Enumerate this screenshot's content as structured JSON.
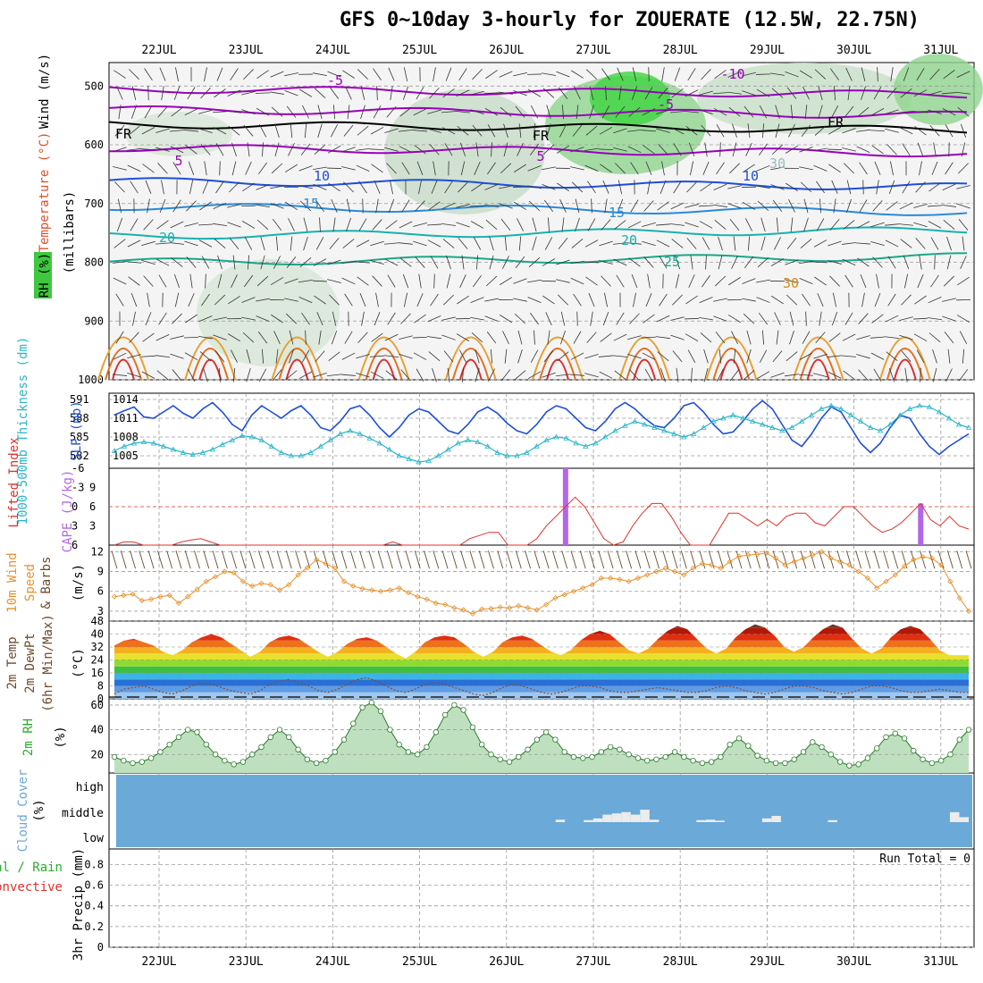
{
  "title": "GFS 0~10day 3-hourly for ZOUERATE (12.5W, 22.75N)",
  "dates": [
    "22JUL",
    "23JUL",
    "24JUL",
    "25JUL",
    "26JUL",
    "27JUL",
    "28JUL",
    "29JUL",
    "30JUL",
    "31JUL"
  ],
  "colors": {
    "purple": "#9900bb",
    "blue": "#1e4fd8",
    "cyan": "#2bb5c8",
    "red": "#e0302a",
    "orange": "#e8902a",
    "green": "#2cab2c",
    "cloud": "#6aa9d8",
    "violet": "#b566e8",
    "brown": "#6b4a2a",
    "rh_fill": "#3fc83f"
  },
  "panels": {
    "upper": {
      "labels": {
        "wind": "Wind (m/s)",
        "temp": "Temperature (°C)",
        "rh": "RH (%)",
        "mb": "(millibars)"
      },
      "levels": [
        500,
        600,
        700,
        800,
        900,
        1000
      ],
      "contour_labels": [
        "-5",
        "-10",
        "-5",
        "5",
        "5",
        "FR",
        "FR",
        "FR",
        "10",
        "10",
        "15",
        "15",
        "20",
        "20",
        "25",
        "30",
        "30"
      ]
    },
    "thick": {
      "labels": {
        "thick": "1000-500mb Thickness (dm)",
        "slp": "SLP (mb)"
      },
      "left_ticks": [
        "591",
        "588",
        "585",
        "582"
      ],
      "right_ticks": [
        "1014",
        "1011",
        "1008",
        "1005"
      ]
    },
    "cape": {
      "labels": {
        "li": "Lifted Index",
        "cape": "CAPE (J/kg)"
      },
      "left_ticks": [
        "-6",
        "-3",
        "0",
        "3",
        "6"
      ],
      "right_ticks": [
        "9",
        "6",
        "3"
      ]
    },
    "wind10": {
      "labels": {
        "wind": "10m Wind",
        "speed": "Speed",
        "barbs": "& Barbs",
        "unit": "(m/s)"
      },
      "ticks": [
        "12",
        "9",
        "6",
        "3"
      ]
    },
    "temp2m": {
      "labels": {
        "temp": "2m Temp",
        "dewpt": "2m DewPt",
        "minmax": "(6hr Min/Max)",
        "unit": "(°C)"
      },
      "ticks": [
        "48",
        "40",
        "32",
        "24",
        "16",
        "8",
        "0"
      ]
    },
    "rh2m": {
      "labels": {
        "rh": "2m RH",
        "unit": "(%)"
      },
      "ticks": [
        "60",
        "40",
        "20"
      ]
    },
    "cloud": {
      "labels": {
        "cloud": "Cloud Cover",
        "unit": "(%)"
      },
      "levels": [
        "high",
        "middle",
        "low"
      ]
    },
    "precip": {
      "labels": {
        "total": "Total / Rain",
        "conv": "Convective",
        "precip": "3hr Precip (mm)"
      },
      "ticks": [
        "0.8",
        "0.6",
        "0.4",
        "0.2",
        "0"
      ],
      "run_total": "Run Total = 0"
    }
  },
  "chart_data": [
    {
      "type": "line",
      "title": "1000-500mb Thickness (dm) / SLP (mb)",
      "series": [
        {
          "name": "SLP (mb)",
          "values": [
            1011.5,
            1012.2,
            1012.8,
            1011.2,
            1011.0,
            1012.0,
            1013.0,
            1011.8,
            1011.0,
            1012.5,
            1013.5,
            1012.0,
            1010.0,
            1009.0,
            1011.5,
            1013.0,
            1012.0,
            1011.0,
            1012.2,
            1013.0,
            1011.5,
            1009.5,
            1009.0,
            1010.5,
            1012.5,
            1013.0,
            1011.5,
            1009.5,
            1008.0,
            1009.5,
            1011.5,
            1012.5,
            1012.0,
            1010.5,
            1009.0,
            1008.5,
            1010.0,
            1012.0,
            1012.8,
            1011.8,
            1010.2,
            1009.0,
            1008.5,
            1010.0,
            1012.0,
            1013.0,
            1012.5,
            1011.0,
            1009.5,
            1009.0,
            1010.5,
            1012.5,
            1013.5,
            1012.5,
            1011.0,
            1009.8,
            1009.5,
            1011.0,
            1013.0,
            1013.5,
            1012.0,
            1010.0,
            1008.5,
            1008.8,
            1010.5,
            1012.5,
            1013.8,
            1012.5,
            1010.0,
            1007.5,
            1006.5,
            1008.5,
            1011.0,
            1012.8,
            1012.0,
            1009.5,
            1007.0,
            1005.5,
            1007.0,
            1009.5,
            1011.5,
            1011.0,
            1008.5,
            1006.5,
            1005.2,
            1006.5,
            1007.5,
            1008.5
          ]
        },
        {
          "name": "1000-500mb Thickness (dm)",
          "values": [
            582.8,
            583.5,
            584.0,
            584.2,
            584.0,
            583.5,
            583.0,
            582.5,
            582.2,
            582.5,
            583.0,
            583.8,
            584.5,
            585.2,
            585.0,
            584.5,
            583.5,
            582.5,
            582.0,
            582.0,
            582.5,
            583.5,
            584.5,
            585.5,
            586.0,
            585.5,
            584.8,
            584.0,
            583.0,
            582.0,
            581.5,
            581.0,
            581.2,
            582.0,
            583.0,
            584.0,
            584.5,
            584.2,
            583.5,
            582.5,
            582.0,
            582.0,
            582.5,
            583.5,
            584.5,
            585.0,
            584.8,
            584.0,
            583.5,
            584.0,
            585.0,
            586.0,
            586.8,
            587.5,
            587.0,
            586.5,
            586.0,
            585.5,
            585.0,
            585.5,
            586.5,
            587.5,
            588.0,
            588.5,
            588.0,
            587.5,
            587.0,
            586.5,
            586.0,
            586.5,
            587.5,
            588.5,
            589.5,
            590.0,
            589.5,
            588.5,
            587.5,
            586.5,
            586.0,
            587.0,
            588.5,
            589.5,
            590.0,
            589.8,
            589.0,
            588.0,
            587.0,
            586.5
          ]
        }
      ]
    },
    {
      "type": "line",
      "title": "Lifted Index / CAPE (J/kg)",
      "series": [
        {
          "name": "Lifted Index",
          "values": [
            6.0,
            5.5,
            5.5,
            6.0,
            6.0,
            6.0,
            6.0,
            5.5,
            5.2,
            5.0,
            5.5,
            6.0,
            6.0,
            6.0,
            6.0,
            6.0,
            6.0,
            6.0,
            6.0,
            6.0,
            6.0,
            6.0,
            6.0,
            6.0,
            6.0,
            6.0,
            6.0,
            6.0,
            6.0,
            5.5,
            6.0,
            6.0,
            6.0,
            6.0,
            6.0,
            6.0,
            6.0,
            5.0,
            4.5,
            4.0,
            4.0,
            6.0,
            6.0,
            6.0,
            5.0,
            3.0,
            1.5,
            0.0,
            -1.5,
            0.0,
            2.5,
            5.0,
            6.0,
            5.5,
            3.0,
            1.0,
            -0.5,
            -0.5,
            1.5,
            4.0,
            6.0,
            6.0,
            6.0,
            3.5,
            1.0,
            1.0,
            2.0,
            3.0,
            2.0,
            3.0,
            1.5,
            1.0,
            1.0,
            2.5,
            3.0,
            1.5,
            0.0,
            0.0,
            1.5,
            3.0,
            4.0,
            3.5,
            2.5,
            1.0,
            -0.5,
            2.0,
            3.0,
            1.5,
            3.0,
            3.5
          ]
        },
        {
          "name": "CAPE (J/kg)",
          "values": [
            0,
            0,
            0,
            0,
            0,
            0,
            0,
            0,
            0,
            0,
            0,
            0,
            0,
            0,
            0,
            0,
            0,
            0,
            0,
            0,
            0,
            0,
            0,
            0,
            0,
            0,
            0,
            0,
            0,
            0,
            0,
            0,
            0,
            0,
            0,
            0,
            0,
            0,
            0,
            0,
            0,
            0,
            0,
            0,
            0,
            0,
            0,
            12,
            0,
            0,
            0,
            0,
            0,
            0,
            0,
            0,
            0,
            0,
            0,
            0,
            0,
            0,
            0,
            0,
            0,
            0,
            0,
            0,
            0,
            0,
            0,
            0,
            0,
            0,
            0,
            0,
            0,
            0,
            0,
            0,
            0,
            0,
            0,
            0,
            6.5,
            0,
            0,
            0,
            0,
            0
          ]
        }
      ]
    },
    {
      "type": "line",
      "title": "10m Wind Speed & Barbs (m/s)",
      "series": [
        {
          "name": "Speed",
          "values": [
            5.2,
            5.4,
            5.6,
            4.6,
            4.8,
            5.2,
            5.4,
            4.2,
            5.2,
            6.3,
            7.5,
            8.2,
            9.0,
            8.8,
            7.5,
            6.8,
            7.2,
            7.0,
            6.2,
            7.0,
            8.5,
            9.6,
            10.8,
            10.2,
            9.5,
            7.5,
            6.8,
            6.4,
            6.2,
            6.0,
            6.2,
            6.5,
            5.8,
            5.2,
            4.8,
            4.2,
            4.0,
            3.5,
            3.2,
            2.6,
            3.3,
            3.4,
            3.6,
            3.5,
            3.8,
            3.5,
            3.2,
            4.0,
            5.0,
            5.5,
            6.0,
            6.5,
            7.0,
            8.0,
            8.0,
            7.8,
            7.5,
            8.0,
            8.5,
            9.0,
            9.5,
            9.0,
            8.5,
            9.5,
            10.2,
            10.0,
            9.5,
            10.5,
            11.3,
            11.5,
            11.6,
            11.8,
            11.0,
            10.0,
            10.5,
            11.0,
            11.5,
            12.0,
            11.0,
            10.5,
            10.0,
            9.0,
            8.0,
            6.5,
            7.5,
            8.5,
            9.8,
            10.8,
            11.2,
            11.0,
            10.0,
            7.5,
            5.0,
            3.0
          ]
        }
      ]
    },
    {
      "type": "line",
      "title": "2m Temp / 2m DewPt (6hr Min/Max) (°C)",
      "series": [
        {
          "name": "2m Temp",
          "values": [
            33,
            36,
            37,
            35,
            33,
            29,
            27,
            30,
            35,
            38,
            40,
            38,
            34,
            30,
            26,
            29,
            35,
            38,
            39,
            37,
            33,
            29,
            26,
            29,
            34,
            37,
            38,
            36,
            32,
            28,
            25,
            29,
            35,
            38,
            39,
            38,
            34,
            29,
            26,
            29,
            35,
            38,
            39,
            37,
            33,
            29,
            27,
            30,
            36,
            40,
            42,
            40,
            35,
            30,
            28,
            31,
            37,
            42,
            45,
            43,
            37,
            31,
            28,
            31,
            38,
            43,
            46,
            44,
            39,
            32,
            29,
            32,
            38,
            43,
            46,
            44,
            37,
            31,
            28,
            31,
            38,
            43,
            45,
            43,
            37,
            30,
            27,
            27,
            27
          ]
        },
        {
          "name": "2m DewPt",
          "values": [
            3,
            6,
            7,
            8,
            6,
            4,
            3,
            5,
            8,
            10,
            9,
            7,
            5,
            4,
            3,
            5,
            9,
            11,
            12,
            10,
            8,
            5,
            4,
            6,
            9,
            12,
            13,
            11,
            8,
            5,
            4,
            6,
            9,
            10,
            9,
            7,
            5,
            3,
            2,
            4,
            7,
            9,
            8,
            6,
            4,
            3,
            4,
            6,
            8,
            8,
            7,
            5,
            4,
            4,
            5,
            6,
            7,
            6,
            5,
            4,
            4,
            5,
            7,
            8,
            7,
            5,
            4,
            3,
            4,
            6,
            8,
            8,
            7,
            5,
            4,
            3,
            4,
            6,
            8,
            8,
            7,
            5,
            4,
            4,
            5,
            6,
            5,
            4,
            4
          ]
        }
      ]
    },
    {
      "type": "area",
      "title": "2m RH (%)",
      "series": [
        {
          "name": "2m RH",
          "values": [
            18,
            15,
            13,
            14,
            17,
            22,
            28,
            34,
            40,
            38,
            28,
            20,
            15,
            12,
            14,
            20,
            26,
            34,
            40,
            34,
            24,
            16,
            13,
            15,
            22,
            32,
            45,
            58,
            62,
            55,
            40,
            28,
            22,
            20,
            26,
            38,
            52,
            60,
            56,
            42,
            28,
            20,
            16,
            14,
            18,
            24,
            32,
            38,
            32,
            22,
            18,
            17,
            18,
            22,
            26,
            24,
            20,
            17,
            15,
            16,
            18,
            22,
            18,
            15,
            13,
            14,
            18,
            28,
            33,
            27,
            19,
            15,
            13,
            13,
            16,
            22,
            30,
            26,
            20,
            14,
            11,
            12,
            17,
            25,
            34,
            37,
            33,
            23,
            16,
            13,
            15,
            20,
            32,
            40
          ]
        }
      ]
    },
    {
      "type": "bar",
      "title": "Cloud Cover (%)",
      "series": [
        {
          "name": "high",
          "values": [
            0,
            0,
            0,
            0,
            0,
            0,
            0,
            0,
            0,
            0,
            0,
            0,
            0,
            0,
            0,
            0,
            0,
            0,
            0,
            0,
            0,
            0,
            0,
            0,
            0,
            0,
            0,
            0,
            0,
            0,
            0,
            0,
            0,
            0,
            0,
            0,
            0,
            0,
            0,
            0,
            0,
            0,
            0,
            0,
            0,
            0,
            0,
            0,
            0,
            0,
            0,
            0,
            0,
            0,
            0,
            0,
            0,
            0,
            0,
            0,
            0,
            0,
            0,
            0,
            0,
            0,
            0,
            0,
            0,
            0,
            0,
            0,
            0,
            0,
            0,
            0,
            0,
            0,
            0,
            0,
            0,
            0,
            0,
            0,
            0,
            0,
            0,
            0,
            0,
            0
          ]
        },
        {
          "name": "middle",
          "values": [
            0,
            0,
            0,
            0,
            0,
            0,
            0,
            0,
            0,
            0,
            0,
            0,
            0,
            0,
            0,
            0,
            0,
            0,
            0,
            0,
            0,
            0,
            0,
            0,
            0,
            0,
            0,
            0,
            0,
            0,
            0,
            0,
            0,
            0,
            0,
            0,
            0,
            0,
            0,
            0,
            0,
            0,
            0,
            0,
            0,
            0,
            0,
            10,
            0,
            0,
            8,
            15,
            30,
            35,
            40,
            30,
            50,
            10,
            0,
            0,
            0,
            0,
            8,
            10,
            6,
            0,
            0,
            0,
            0,
            15,
            25,
            0,
            0,
            0,
            0,
            0,
            8,
            0,
            0,
            0,
            0,
            0,
            0,
            0,
            0,
            0,
            0,
            0,
            0,
            40,
            20
          ]
        }
      ]
    },
    {
      "type": "bar",
      "title": "3hr Precip (mm)",
      "series": [
        {
          "name": "Total / Rain",
          "values": [
            0,
            0,
            0,
            0,
            0,
            0,
            0,
            0,
            0,
            0
          ]
        },
        {
          "name": "Convective",
          "values": [
            0,
            0,
            0,
            0,
            0,
            0,
            0,
            0,
            0,
            0
          ]
        }
      ]
    }
  ]
}
